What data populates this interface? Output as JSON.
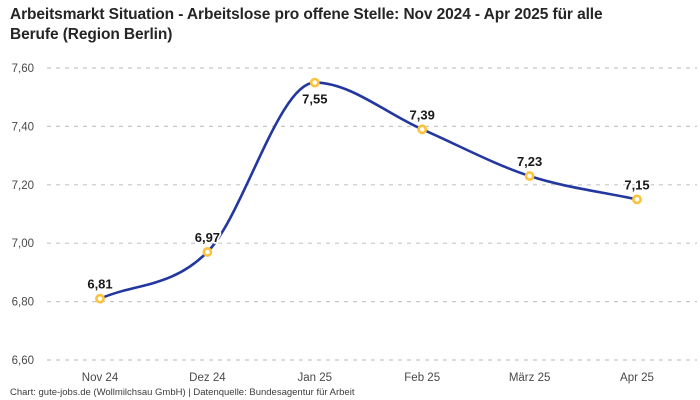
{
  "header": {
    "title_line1": "Arbeitsmarkt Situation - Arbeitslose pro offene Stelle: Nov 2024 - Apr 2025 für alle",
    "title_line2": "Berufe (Region Berlin)"
  },
  "footer": {
    "text": "Chart: gute-jobs.de (Wollmilchsau GmbH) | Datenquelle: Bundesagentur für Arbeit"
  },
  "chart_data": {
    "type": "line",
    "title": "Arbeitsmarkt Situation - Arbeitslose pro offene Stelle: Nov 2024 - Apr 2025 für alle Berufe (Region Berlin)",
    "categories": [
      "Nov 24",
      "Dez 24",
      "Jan 25",
      "Feb 25",
      "März 25",
      "Apr 25"
    ],
    "values": [
      6.81,
      6.97,
      7.55,
      7.39,
      7.23,
      7.15
    ],
    "value_labels": [
      "6,81",
      "6,97",
      "7,55",
      "7,39",
      "7,23",
      "7,15"
    ],
    "y_ticks": {
      "labels": [
        "6,60",
        "6,80",
        "7,00",
        "7,20",
        "7,40",
        "7,60"
      ],
      "values": [
        6.6,
        6.8,
        7.0,
        7.2,
        7.4,
        7.6
      ]
    },
    "ylim": [
      6.6,
      7.6
    ],
    "xlabel": "",
    "ylabel": "",
    "legend": "none",
    "grid": "horizontal-dashed",
    "curve": "monotone",
    "label_below_indices": [
      2
    ],
    "colors": {
      "line": "#22379f",
      "marker_stroke": "#fcc23a",
      "marker_fill": "#ffffff",
      "grid": "#c7c7c7",
      "title_text": "#252525",
      "axis_text": "#494949",
      "value_label_text": "#191919",
      "footer_text": "#3c3c3c",
      "background": "#ffffff"
    }
  }
}
